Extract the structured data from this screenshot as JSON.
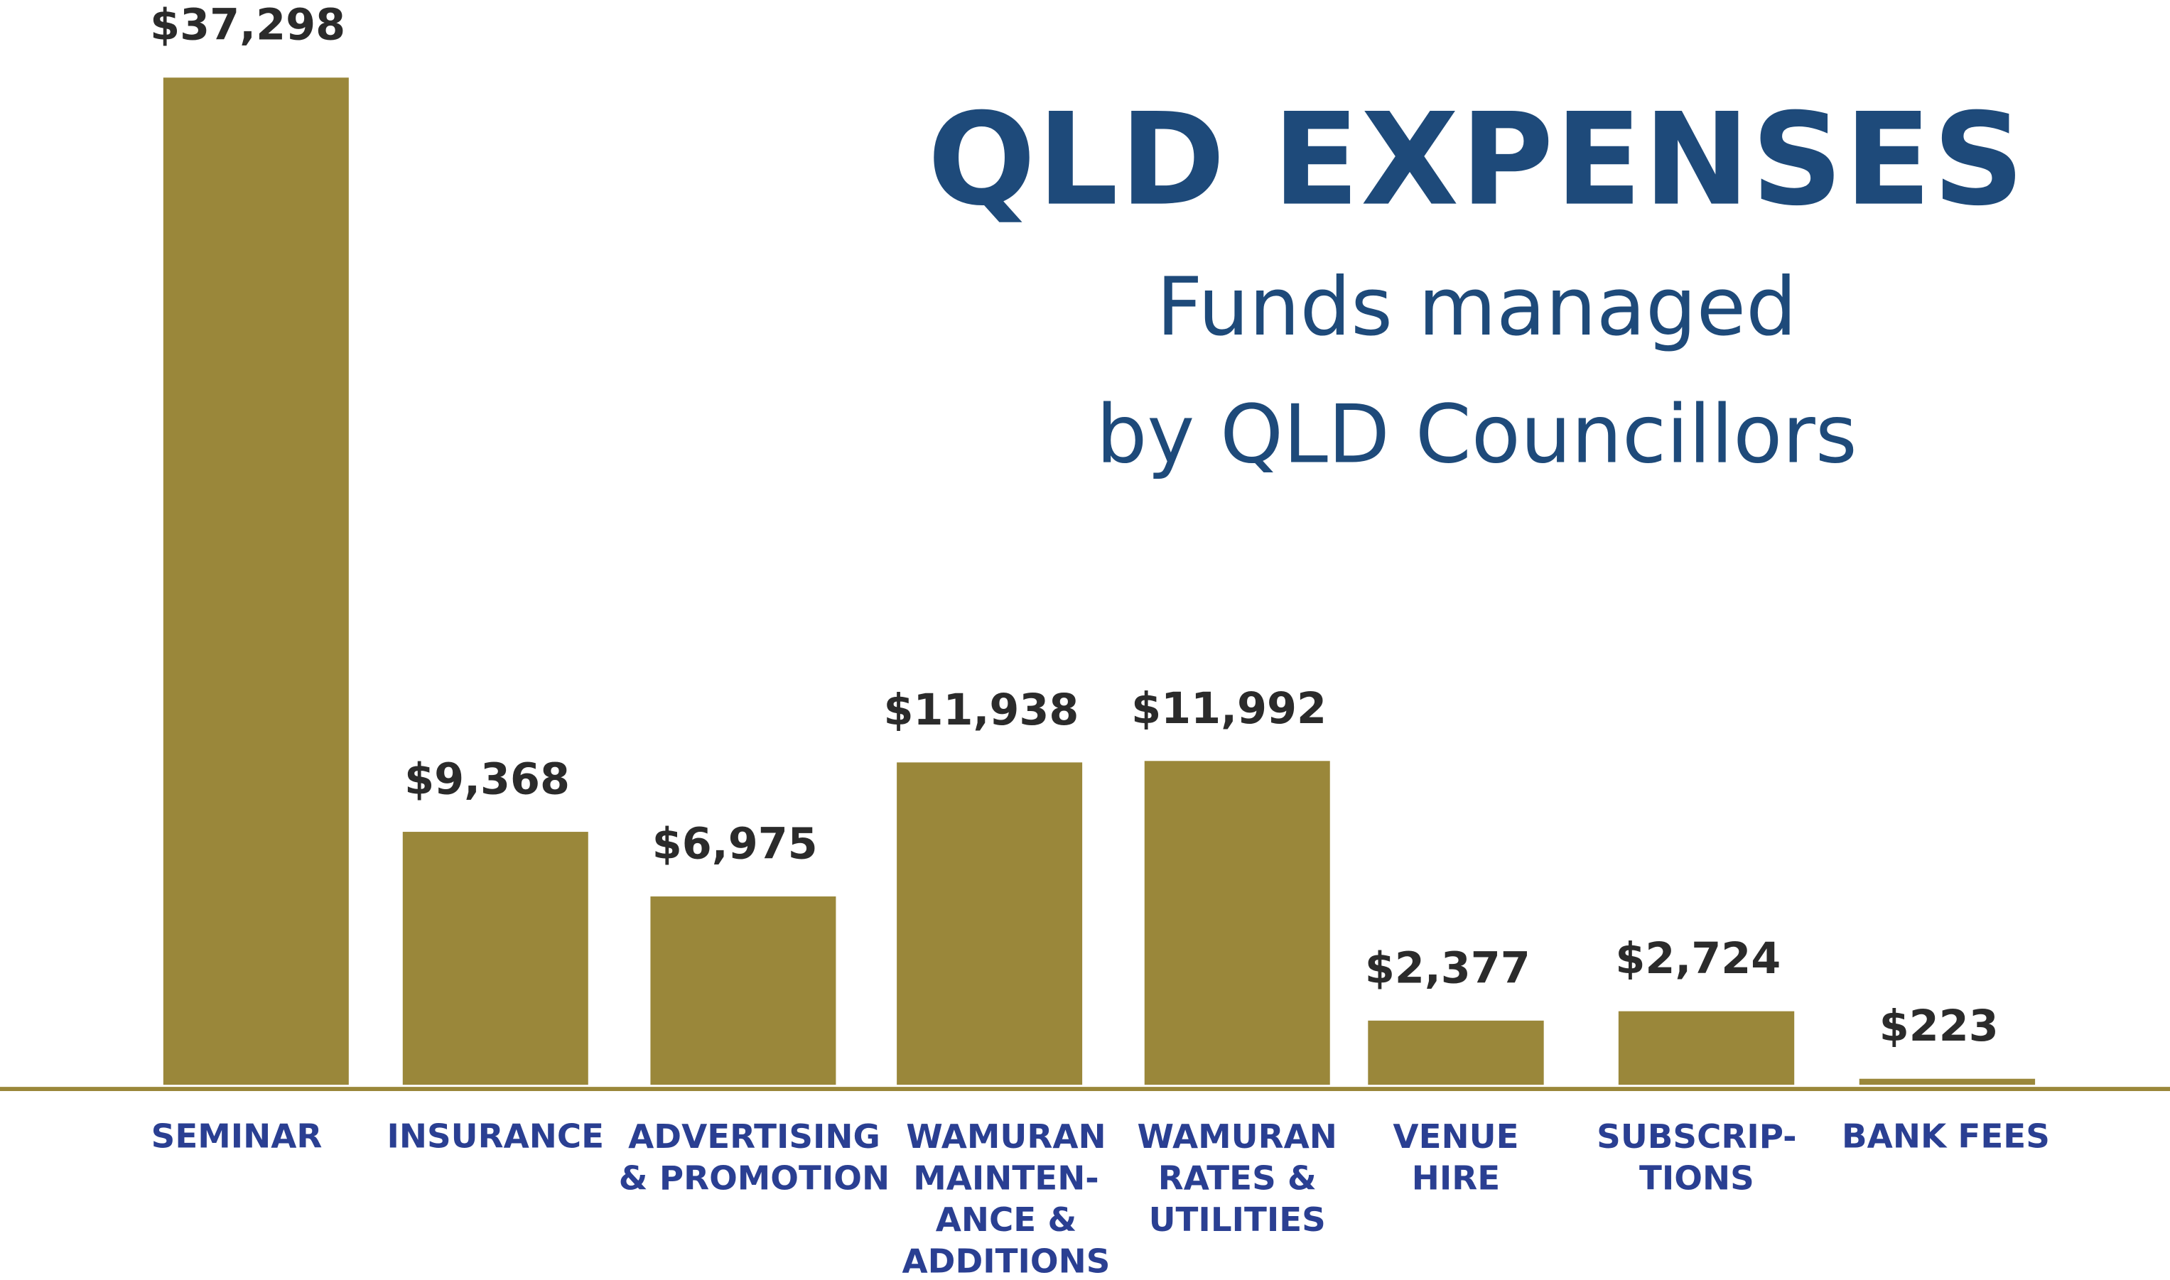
{
  "chart_data": {
    "type": "bar",
    "title": "QLD EXPENSES",
    "subtitle": [
      "Funds managed",
      "by QLD Councillors"
    ],
    "categories": [
      "SEMINAR",
      "INSURANCE",
      "ADVERTISING\n& PROMOTION",
      "WAMURAN\nMAINTEN-\nANCE &\nADDITIONS",
      "WAMURAN\nRATES &\nUTILITIES",
      "VENUE\nHIRE",
      "SUBSCRIP-\nTIONS",
      "BANK FEES"
    ],
    "values": [
      37298,
      9368,
      6975,
      11938,
      11992,
      2377,
      2724,
      223
    ],
    "value_labels": [
      "$37,298",
      "$9,368",
      "$6,975",
      "$11,938",
      "$11,992",
      "$2,377",
      "$2,724",
      "$223"
    ],
    "color": "#9a873a"
  }
}
